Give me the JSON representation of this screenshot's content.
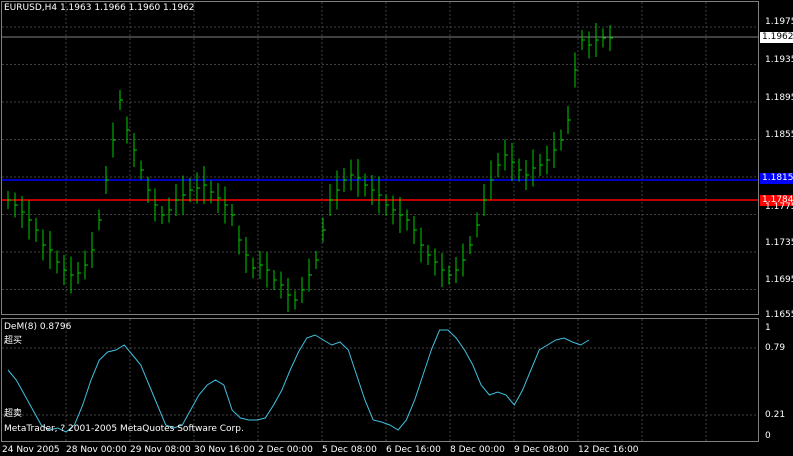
{
  "chart": {
    "header": "EURUSD,H4  1.1963 1.1966 1.1960 1.1962",
    "price_levels": [
      {
        "value": "1.1975"
      },
      {
        "value": "1.1935"
      },
      {
        "value": "1.1895"
      },
      {
        "value": "1.1855"
      },
      {
        "value": "1.1775"
      },
      {
        "value": "1.1735"
      },
      {
        "value": "1.1695"
      },
      {
        "value": "1.1655"
      }
    ],
    "current_price": "1.1962",
    "blue_line": {
      "value": "1.1815",
      "color": "#0000ff"
    },
    "red_line": {
      "value": "1.1784",
      "color": "#ff0000"
    },
    "candle_color": "#00cc00",
    "count_color": "#ffaa00"
  },
  "indicator": {
    "title": "DeM(8) 0.8796",
    "overbought_label": "超买",
    "oversold_label": "超卖",
    "levels": [
      "1",
      "0.79",
      "0.21",
      "0"
    ],
    "line_color": "#40c0e0"
  },
  "copyright": "MetaTrader, ? 2001-2005 MetaQuotes Software Corp.",
  "time_axis": [
    "24 Nov 2005",
    "28 Nov 00:00",
    "29 Nov 08:00",
    "30 Nov 16:00",
    "2 Dec 00:00",
    "5 Dec 08:00",
    "6 Dec 16:00",
    "8 Dec 00:00",
    "9 Dec 08:00",
    "12 Dec 16:00"
  ],
  "chart_data": {
    "type": "line",
    "title": "EURUSD,H4",
    "ylim": [
      1.1655,
      1.199
    ],
    "grid": true,
    "series": [
      {
        "name": "DeM(8)",
        "ylim": [
          0,
          1
        ]
      }
    ]
  }
}
